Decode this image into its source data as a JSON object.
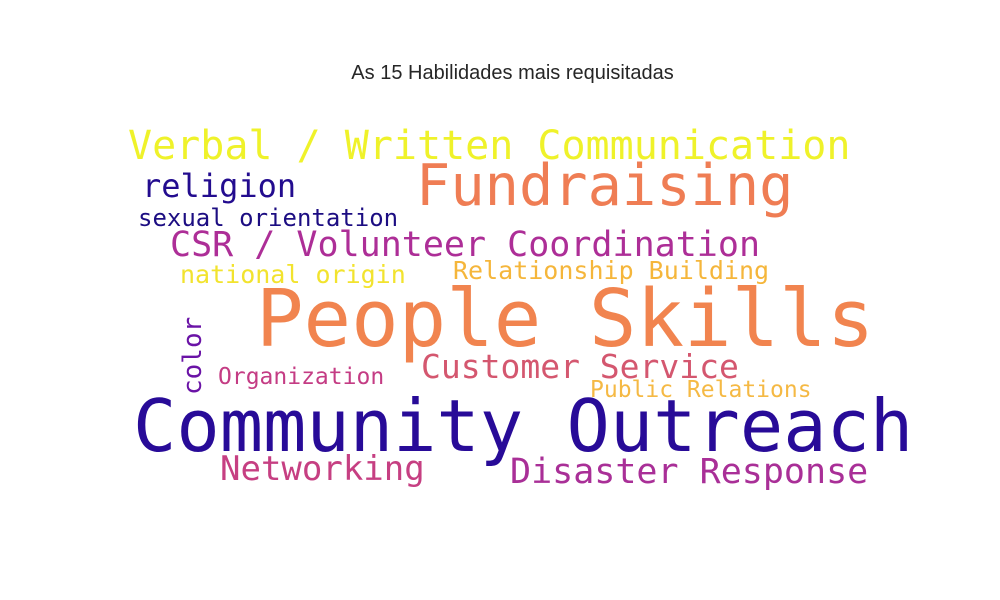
{
  "title": "As 15 Habilidades mais requisitadas",
  "words": {
    "people_skills": {
      "text": "People Skills",
      "color": "#f1844f"
    },
    "community_outreach": {
      "text": "Community Outreach",
      "color": "#280b98"
    },
    "fundraising": {
      "text": "Fundraising",
      "color": "#ef7d54"
    },
    "verbal_written": {
      "text": "Verbal / Written Communication",
      "color": "#eff22a"
    },
    "csr_volunteer": {
      "text": "CSR / Volunteer Coordination",
      "color": "#ad2e97"
    },
    "customer_service": {
      "text": "Customer Service",
      "color": "#d4576f"
    },
    "disaster_response": {
      "text": "Disaster Response",
      "color": "#a92f97"
    },
    "networking": {
      "text": "Networking",
      "color": "#c63f82"
    },
    "religion": {
      "text": "religion",
      "color": "#230c8f"
    },
    "relationship_building": {
      "text": "Relationship Building",
      "color": "#f5b63b"
    },
    "national_origin": {
      "text": "national origin",
      "color": "#f2e32e"
    },
    "sexual_orientation": {
      "text": "sexual orientation",
      "color": "#1c0d82"
    },
    "organization": {
      "text": "Organization",
      "color": "#c43c84"
    },
    "public_relations": {
      "text": "Public Relations",
      "color": "#f5b944"
    },
    "color": {
      "text": "color",
      "color": "#6a13a6"
    }
  }
}
